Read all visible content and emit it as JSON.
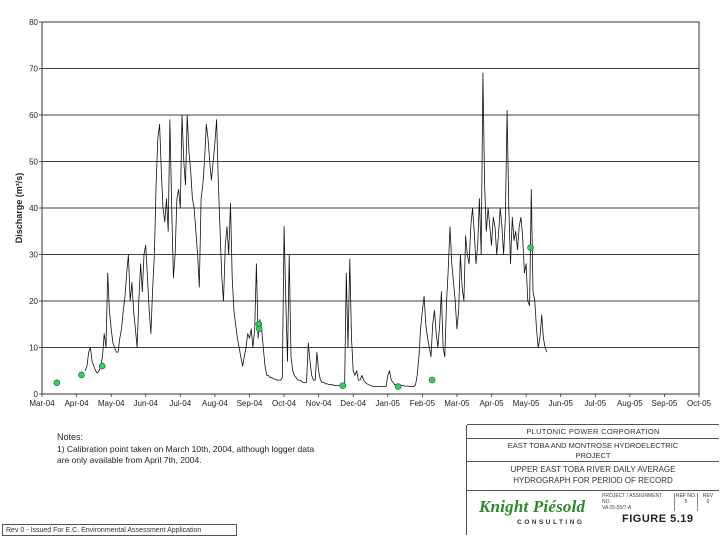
{
  "chart_data": {
    "type": "line",
    "title": "",
    "ylabel": "Discharge (m³/s)",
    "xlabel": "",
    "ylim": [
      0,
      80
    ],
    "yticks": [
      0,
      10,
      20,
      30,
      40,
      50,
      60,
      70,
      80
    ],
    "grid": "horizontal",
    "x_tick_labels": [
      "Mar-04",
      "Apr-04",
      "May-04",
      "Jun-04",
      "Jul-04",
      "Aug-04",
      "Sep-04",
      "Oct-04",
      "Nov-04",
      "Dec-04",
      "Jan-05",
      "Feb-05",
      "Mar-05",
      "Apr-05",
      "May-05",
      "Jun-05",
      "Jul-05",
      "Aug-05",
      "Sep-05",
      "Oct-05"
    ],
    "series": [
      {
        "type": "line",
        "color": "#111111",
        "points": [
          [
            1.25,
            5
          ],
          [
            1.3,
            6
          ],
          [
            1.35,
            9
          ],
          [
            1.4,
            10
          ],
          [
            1.45,
            7
          ],
          [
            1.5,
            6
          ],
          [
            1.55,
            5
          ],
          [
            1.6,
            4.5
          ],
          [
            1.65,
            5
          ],
          [
            1.7,
            6
          ],
          [
            1.75,
            8
          ],
          [
            1.8,
            13
          ],
          [
            1.85,
            10
          ],
          [
            1.9,
            26
          ],
          [
            1.95,
            18
          ],
          [
            2.0,
            14
          ],
          [
            2.05,
            11
          ],
          [
            2.1,
            10
          ],
          [
            2.15,
            9
          ],
          [
            2.2,
            9
          ],
          [
            2.25,
            12
          ],
          [
            2.3,
            14
          ],
          [
            2.35,
            18
          ],
          [
            2.4,
            21
          ],
          [
            2.45,
            26
          ],
          [
            2.5,
            30
          ],
          [
            2.55,
            20
          ],
          [
            2.6,
            24
          ],
          [
            2.65,
            18
          ],
          [
            2.7,
            14
          ],
          [
            2.75,
            10
          ],
          [
            2.8,
            20
          ],
          [
            2.85,
            28
          ],
          [
            2.9,
            22
          ],
          [
            2.95,
            30
          ],
          [
            3.0,
            32
          ],
          [
            3.05,
            25
          ],
          [
            3.1,
            18
          ],
          [
            3.15,
            13
          ],
          [
            3.2,
            23
          ],
          [
            3.25,
            30
          ],
          [
            3.3,
            45
          ],
          [
            3.35,
            55
          ],
          [
            3.4,
            58
          ],
          [
            3.45,
            48
          ],
          [
            3.5,
            40
          ],
          [
            3.55,
            37
          ],
          [
            3.6,
            42
          ],
          [
            3.65,
            35
          ],
          [
            3.7,
            59
          ],
          [
            3.75,
            40
          ],
          [
            3.8,
            25
          ],
          [
            3.85,
            30
          ],
          [
            3.9,
            42
          ],
          [
            3.95,
            44
          ],
          [
            4.0,
            40
          ],
          [
            4.05,
            60
          ],
          [
            4.1,
            50
          ],
          [
            4.15,
            45
          ],
          [
            4.2,
            60
          ],
          [
            4.25,
            52
          ],
          [
            4.3,
            48
          ],
          [
            4.35,
            42
          ],
          [
            4.4,
            40
          ],
          [
            4.45,
            35
          ],
          [
            4.5,
            30
          ],
          [
            4.55,
            23
          ],
          [
            4.6,
            42
          ],
          [
            4.65,
            45
          ],
          [
            4.7,
            50
          ],
          [
            4.75,
            58
          ],
          [
            4.8,
            55
          ],
          [
            4.85,
            50
          ],
          [
            4.9,
            46
          ],
          [
            4.95,
            50
          ],
          [
            5.0,
            54
          ],
          [
            5.05,
            59
          ],
          [
            5.1,
            45
          ],
          [
            5.15,
            35
          ],
          [
            5.2,
            25
          ],
          [
            5.25,
            20
          ],
          [
            5.3,
            32
          ],
          [
            5.35,
            36
          ],
          [
            5.4,
            30
          ],
          [
            5.45,
            41
          ],
          [
            5.5,
            25
          ],
          [
            5.55,
            18
          ],
          [
            5.6,
            15
          ],
          [
            5.65,
            12
          ],
          [
            5.7,
            10
          ],
          [
            5.75,
            8
          ],
          [
            5.8,
            6
          ],
          [
            5.85,
            8
          ],
          [
            5.9,
            10
          ],
          [
            5.95,
            13
          ],
          [
            6.0,
            12
          ],
          [
            6.05,
            14
          ],
          [
            6.1,
            10
          ],
          [
            6.15,
            14
          ],
          [
            6.2,
            28
          ],
          [
            6.25,
            12
          ],
          [
            6.3,
            16
          ],
          [
            6.35,
            14
          ],
          [
            6.4,
            10
          ],
          [
            6.45,
            6
          ],
          [
            6.5,
            4
          ],
          [
            6.55,
            4
          ],
          [
            6.6,
            3.5
          ],
          [
            6.65,
            3.5
          ],
          [
            6.7,
            3.2
          ],
          [
            6.75,
            3.2
          ],
          [
            6.8,
            3
          ],
          [
            6.85,
            3
          ],
          [
            6.9,
            3
          ],
          [
            6.95,
            3.5
          ],
          [
            7.0,
            36
          ],
          [
            7.05,
            20
          ],
          [
            7.1,
            7
          ],
          [
            7.15,
            30
          ],
          [
            7.2,
            8
          ],
          [
            7.25,
            5
          ],
          [
            7.3,
            4
          ],
          [
            7.35,
            3.5
          ],
          [
            7.4,
            3
          ],
          [
            7.45,
            3
          ],
          [
            7.5,
            2.8
          ],
          [
            7.55,
            2.5
          ],
          [
            7.6,
            2.5
          ],
          [
            7.65,
            2.5
          ],
          [
            7.7,
            11
          ],
          [
            7.75,
            7
          ],
          [
            7.8,
            4
          ],
          [
            7.85,
            3
          ],
          [
            7.9,
            3
          ],
          [
            7.95,
            9
          ],
          [
            8.0,
            5
          ],
          [
            8.05,
            3
          ],
          [
            8.1,
            2.5
          ],
          [
            8.15,
            2.5
          ],
          [
            8.2,
            2.2
          ],
          [
            8.25,
            2.2
          ],
          [
            8.3,
            2
          ],
          [
            8.35,
            2
          ],
          [
            8.4,
            2
          ],
          [
            8.45,
            1.8
          ],
          [
            8.5,
            1.8
          ],
          [
            8.55,
            1.8
          ],
          [
            8.6,
            1.8
          ],
          [
            8.65,
            1.8
          ],
          [
            8.7,
            1.6
          ],
          [
            8.75,
            1.6
          ],
          [
            8.8,
            26
          ],
          [
            8.85,
            10
          ],
          [
            8.9,
            29
          ],
          [
            8.95,
            12
          ],
          [
            9.0,
            5
          ],
          [
            9.05,
            4
          ],
          [
            9.1,
            5
          ],
          [
            9.15,
            3
          ],
          [
            9.2,
            3
          ],
          [
            9.25,
            4
          ],
          [
            9.3,
            3
          ],
          [
            9.35,
            2.5
          ],
          [
            9.4,
            2.2
          ],
          [
            9.45,
            2
          ],
          [
            9.5,
            1.8
          ],
          [
            9.55,
            1.7
          ],
          [
            9.6,
            1.6
          ],
          [
            9.65,
            1.6
          ],
          [
            9.7,
            1.6
          ],
          [
            9.75,
            1.6
          ],
          [
            9.8,
            1.6
          ],
          [
            9.85,
            1.6
          ],
          [
            9.9,
            1.6
          ],
          [
            9.95,
            1.6
          ],
          [
            10.0,
            4
          ],
          [
            10.05,
            5
          ],
          [
            10.1,
            3
          ],
          [
            10.15,
            2.5
          ],
          [
            10.2,
            2
          ],
          [
            10.25,
            2
          ],
          [
            10.3,
            2
          ],
          [
            10.35,
            2
          ],
          [
            10.4,
            1.8
          ],
          [
            10.45,
            1.8
          ],
          [
            10.5,
            1.7
          ],
          [
            10.55,
            1.7
          ],
          [
            10.6,
            1.7
          ],
          [
            10.65,
            1.6
          ],
          [
            10.7,
            1.6
          ],
          [
            10.75,
            1.6
          ],
          [
            10.8,
            2
          ],
          [
            10.85,
            4
          ],
          [
            10.9,
            8
          ],
          [
            10.95,
            14
          ],
          [
            11.0,
            18
          ],
          [
            11.05,
            21
          ],
          [
            11.1,
            15
          ],
          [
            11.15,
            12
          ],
          [
            11.2,
            10
          ],
          [
            11.25,
            8
          ],
          [
            11.3,
            15
          ],
          [
            11.35,
            18
          ],
          [
            11.4,
            13
          ],
          [
            11.45,
            10
          ],
          [
            11.5,
            15
          ],
          [
            11.55,
            22
          ],
          [
            11.6,
            10
          ],
          [
            11.65,
            8
          ],
          [
            11.7,
            20
          ],
          [
            11.75,
            27
          ],
          [
            11.8,
            36
          ],
          [
            11.85,
            28
          ],
          [
            11.9,
            24
          ],
          [
            11.95,
            20
          ],
          [
            12.0,
            14
          ],
          [
            12.05,
            18
          ],
          [
            12.1,
            30
          ],
          [
            12.15,
            23
          ],
          [
            12.2,
            20
          ],
          [
            12.25,
            34
          ],
          [
            12.3,
            30
          ],
          [
            12.35,
            28
          ],
          [
            12.4,
            36
          ],
          [
            12.45,
            40
          ],
          [
            12.5,
            35
          ],
          [
            12.55,
            28
          ],
          [
            12.6,
            32
          ],
          [
            12.65,
            42
          ],
          [
            12.7,
            30
          ],
          [
            12.75,
            69
          ],
          [
            12.8,
            45
          ],
          [
            12.85,
            35
          ],
          [
            12.9,
            40
          ],
          [
            12.95,
            36
          ],
          [
            13.0,
            32
          ],
          [
            13.05,
            38
          ],
          [
            13.1,
            36
          ],
          [
            13.15,
            30
          ],
          [
            13.2,
            34
          ],
          [
            13.25,
            40
          ],
          [
            13.3,
            36
          ],
          [
            13.35,
            30
          ],
          [
            13.4,
            38
          ],
          [
            13.45,
            61
          ],
          [
            13.5,
            40
          ],
          [
            13.55,
            28
          ],
          [
            13.6,
            38
          ],
          [
            13.65,
            33
          ],
          [
            13.7,
            35
          ],
          [
            13.75,
            31
          ],
          [
            13.8,
            36
          ],
          [
            13.85,
            38
          ],
          [
            13.9,
            34
          ],
          [
            13.95,
            26
          ],
          [
            14.0,
            28
          ],
          [
            14.05,
            20
          ],
          [
            14.1,
            19
          ],
          [
            14.15,
            44
          ],
          [
            14.2,
            22
          ],
          [
            14.25,
            20
          ],
          [
            14.3,
            14
          ],
          [
            14.35,
            10
          ],
          [
            14.4,
            12
          ],
          [
            14.45,
            17
          ],
          [
            14.5,
            12
          ],
          [
            14.55,
            10
          ],
          [
            14.6,
            9
          ]
        ]
      },
      {
        "type": "scatter",
        "name": "Calibration points",
        "color": "#33cc66",
        "points": [
          [
            0.43,
            2.4
          ],
          [
            1.14,
            4.1
          ],
          [
            1.74,
            6.0
          ],
          [
            6.27,
            15.0
          ],
          [
            6.28,
            14.0
          ],
          [
            8.7,
            1.8
          ],
          [
            10.3,
            1.6
          ],
          [
            11.28,
            3.0
          ],
          [
            14.13,
            31.5
          ]
        ]
      }
    ],
    "annotations": {
      "notes_title": "Notes:",
      "notes_lines": [
        "1) Calibration point taken on March 10th, 2004, although logger data",
        "are only available from April 7th, 2004."
      ]
    }
  },
  "title_block": {
    "client": "PLUTONIC POWER CORPORATION",
    "project_line1": "EAST TOBA AND MONTROSE HYDROELECTRIC",
    "project_line2": "PROJECT",
    "drawing_line1": "UPPER EAST TOBA RIVER DAILY AVERAGE",
    "drawing_line2": "HYDROGRAPH FOR PERIOD OF RECORD",
    "logo_name": "Knight Piésold",
    "logo_sub": "CONSULTING",
    "proj_no_label": "PROJECT / ASSIGNMENT NO.",
    "proj_no_value": "VA 05-55/7-A",
    "ref_label": "REF NO.",
    "ref_value": "5",
    "rev_label": "REV",
    "rev_value": "0",
    "figure": "FIGURE 5.19"
  },
  "revision_note": "Rev 0 - Issued For E.C. Environmental Assessment Application"
}
